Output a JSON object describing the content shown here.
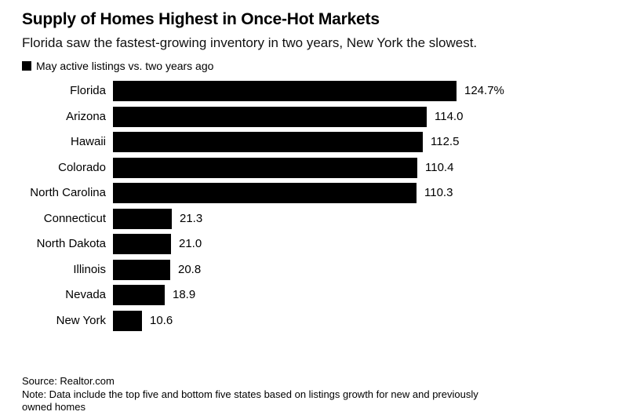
{
  "header": {
    "title": "Supply of Homes Highest in Once-Hot Markets",
    "subtitle": "Florida saw the fastest-growing inventory in two years, New York the slowest."
  },
  "legend": {
    "label": "May active listings vs. two years ago",
    "swatch_color": "#000000"
  },
  "chart_data": {
    "type": "bar",
    "orientation": "horizontal",
    "title": "Supply of Homes Highest in Once-Hot Markets",
    "subtitle": "Florida saw the fastest-growing inventory in two years, New York the slowest.",
    "legend": "May active listings vs. two years ago",
    "unit": "percent change",
    "bar_color": "#000000",
    "grid": false,
    "value_axis_shown": false,
    "xlim": [
      0,
      188
    ],
    "categories": [
      "Florida",
      "Arizona",
      "Hawaii",
      "Colorado",
      "North Carolina",
      "Connecticut",
      "North Dakota",
      "Illinois",
      "Nevada",
      "New York"
    ],
    "values": [
      124.7,
      114.0,
      112.5,
      110.4,
      110.3,
      21.3,
      21.0,
      20.8,
      18.9,
      10.6
    ],
    "value_labels": [
      "124.7%",
      "114.0",
      "112.5",
      "110.4",
      "110.3",
      "21.3",
      "21.0",
      "20.8",
      "18.9",
      "10.6"
    ]
  },
  "footer": {
    "source": "Source: Realtor.com",
    "note_lines": [
      "Note: Data include the top five and bottom five states based on listings growth for new and previously",
      "owned homes"
    ]
  }
}
